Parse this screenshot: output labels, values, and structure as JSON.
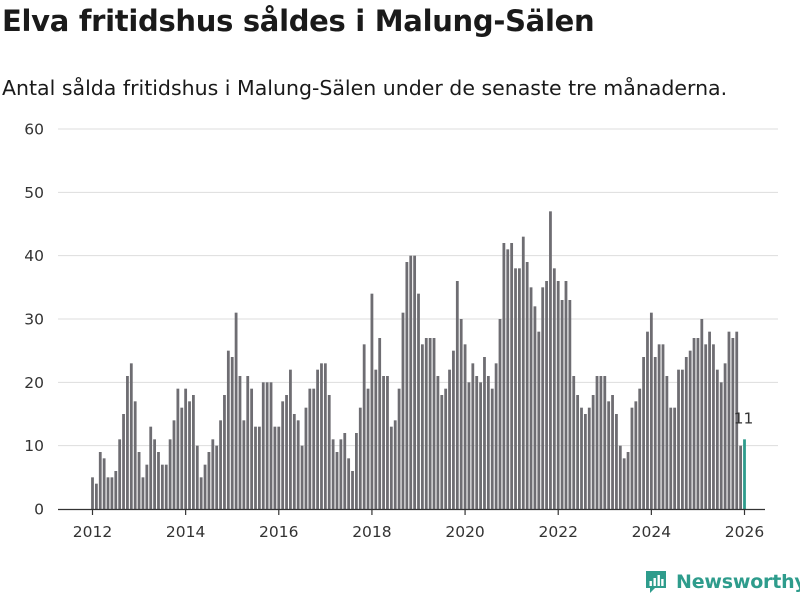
{
  "header": {
    "title": "Elva fritidshus såldes i Malung-Sälen",
    "subtitle": "Antal sålda fritidshus i Malung-Sälen under de senaste tre månaderna."
  },
  "branding": {
    "name": "Newsworthy"
  },
  "colors": {
    "bar": "#6e6d72",
    "highlight": "#2e9c8c",
    "grid": "#dddddd",
    "axis": "#333333",
    "text": "#333333"
  },
  "chart_data": {
    "type": "bar",
    "title": "Elva fritidshus såldes i Malung-Sälen",
    "subtitle": "Antal sålda fritidshus i Malung-Sälen under de senaste tre månaderna.",
    "xlabel": "",
    "ylabel": "",
    "ylim": [
      0,
      60
    ],
    "yticks": [
      0,
      10,
      20,
      30,
      40,
      50,
      60
    ],
    "xlim": [
      2011.3,
      2026.5
    ],
    "xticks": [
      2012,
      2014,
      2016,
      2018,
      2020,
      2022,
      2024,
      2026
    ],
    "grid": true,
    "frequency": "monthly",
    "start": "2012-01",
    "end": "2026-01",
    "highlight_last": true,
    "last_value_label": "11",
    "values": [
      5,
      4,
      9,
      8,
      5,
      5,
      6,
      11,
      15,
      21,
      23,
      17,
      9,
      5,
      7,
      13,
      11,
      9,
      7,
      7,
      11,
      14,
      19,
      16,
      19,
      17,
      18,
      10,
      5,
      7,
      9,
      11,
      10,
      14,
      18,
      25,
      24,
      31,
      21,
      14,
      21,
      19,
      13,
      13,
      20,
      20,
      20,
      13,
      13,
      17,
      18,
      22,
      15,
      14,
      10,
      16,
      19,
      19,
      22,
      23,
      23,
      18,
      11,
      9,
      11,
      12,
      8,
      6,
      12,
      16,
      26,
      19,
      34,
      22,
      27,
      21,
      21,
      13,
      14,
      19,
      31,
      39,
      40,
      40,
      34,
      26,
      27,
      27,
      27,
      21,
      18,
      19,
      22,
      25,
      36,
      30,
      26,
      20,
      23,
      21,
      20,
      24,
      21,
      19,
      23,
      30,
      42,
      41,
      42,
      38,
      38,
      43,
      39,
      35,
      32,
      28,
      35,
      36,
      47,
      38,
      36,
      33,
      36,
      33,
      21,
      18,
      16,
      15,
      16,
      18,
      21,
      21,
      21,
      17,
      18,
      15,
      10,
      8,
      9,
      16,
      17,
      19,
      24,
      28,
      31,
      24,
      26,
      26,
      21,
      16,
      16,
      22,
      22,
      24,
      25,
      27,
      27,
      30,
      26,
      28,
      26,
      22,
      20,
      23,
      28,
      27,
      28,
      10,
      11
    ]
  }
}
